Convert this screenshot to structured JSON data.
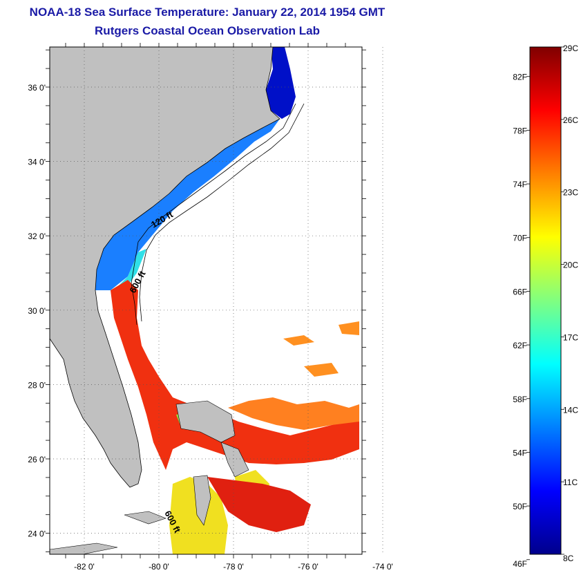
{
  "header": {
    "title": "NOAA-18 Sea Surface Temperature:  January 22, 2014 1954 GMT",
    "subtitle": "Rutgers Coastal Ocean Observation Lab"
  },
  "map": {
    "lat_labels": [
      "36 0'",
      "34 0'",
      "32 0'",
      "30 0'",
      "28 0'",
      "26 0'",
      "24 0'"
    ],
    "lon_labels": [
      "-82 0'",
      "-80 0'",
      "-78 0'",
      "-76 0'",
      "-74 0'"
    ],
    "lat_values": [
      36,
      34,
      32,
      30,
      28,
      26,
      24
    ],
    "lon_values": [
      -82,
      -80,
      -78,
      -76,
      -74
    ],
    "isobath_labels": [
      "120 ft",
      "600 ft",
      "600 ft"
    ],
    "land_color": "#c0c0c0"
  },
  "colorbar": {
    "f_labels": [
      "82F",
      "78F",
      "74F",
      "70F",
      "66F",
      "62F",
      "58F",
      "54F",
      "50F",
      "46F"
    ],
    "c_labels": [
      "29C",
      "26C",
      "23C",
      "20C",
      "17C",
      "14C",
      "11C",
      "8C"
    ],
    "range_c": [
      8,
      29
    ],
    "colors": [
      "#00008c",
      "#0000ff",
      "#0080ff",
      "#00ffff",
      "#80ff80",
      "#ffff00",
      "#ff8000",
      "#ff0000",
      "#800000"
    ]
  }
}
